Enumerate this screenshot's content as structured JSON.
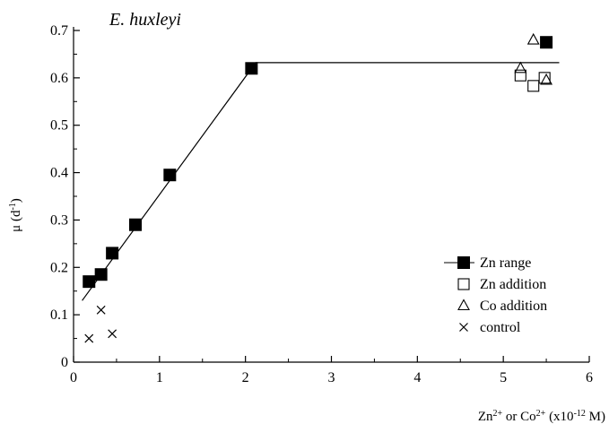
{
  "chart_data": {
    "type": "scatter",
    "title": "E. huxleyi",
    "xlabel": {
      "base1": "Zn",
      "sup1": "2+",
      "mid": " or Co",
      "sup2": "2+",
      "mid2": " (x10",
      "sup3": "-12",
      "end": " M)"
    },
    "ylabel": {
      "base": "μ (d",
      "sup": "-1",
      "end": ")"
    },
    "xlim": [
      0,
      6
    ],
    "ylim": [
      0,
      0.7
    ],
    "xticks": [
      "0",
      "1",
      "2",
      "3",
      "4",
      "5",
      "6"
    ],
    "yticks": [
      "0",
      "0.1",
      "0.2",
      "0.3",
      "0.4",
      "0.5",
      "0.6",
      "0.7"
    ],
    "legend_position": "bottom-right",
    "series": [
      {
        "name": "Zn range",
        "marker": "filled-square",
        "line": true,
        "points": [
          [
            0.18,
            0.17
          ],
          [
            0.32,
            0.185
          ],
          [
            0.45,
            0.23
          ],
          [
            0.72,
            0.29
          ],
          [
            1.12,
            0.395
          ],
          [
            2.07,
            0.62
          ],
          [
            5.5,
            0.675
          ]
        ]
      },
      {
        "name": "Zn addition",
        "marker": "open-square",
        "line": false,
        "points": [
          [
            5.2,
            0.605
          ],
          [
            5.35,
            0.583
          ],
          [
            5.48,
            0.6
          ]
        ]
      },
      {
        "name": "Co addition",
        "marker": "open-triangle",
        "line": false,
        "points": [
          [
            5.2,
            0.62
          ],
          [
            5.35,
            0.68
          ],
          [
            5.5,
            0.595
          ]
        ]
      },
      {
        "name": "control",
        "marker": "cross",
        "line": false,
        "points": [
          [
            0.18,
            0.05
          ],
          [
            0.32,
            0.11
          ],
          [
            0.45,
            0.06
          ]
        ]
      }
    ],
    "fit_line": {
      "points": [
        [
          0.1,
          0.13
        ],
        [
          2.12,
          0.632
        ],
        [
          5.65,
          0.632
        ]
      ]
    }
  }
}
